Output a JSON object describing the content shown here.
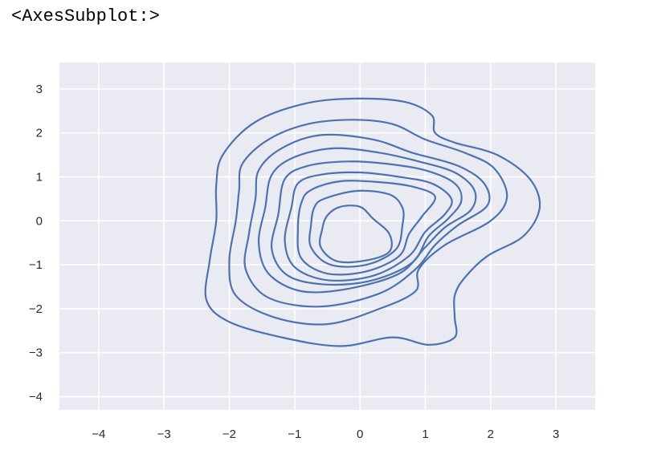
{
  "output_repr": "<AxesSubplot:>",
  "chart_data": {
    "type": "kde_contour",
    "title": "",
    "xlabel": "",
    "ylabel": "",
    "xlim": [
      -4.6,
      3.6
    ],
    "ylim": [
      -4.3,
      3.6
    ],
    "xticks": [
      -4,
      -3,
      -2,
      -1,
      0,
      1,
      2,
      3
    ],
    "yticks": [
      -4,
      -3,
      -2,
      -1,
      0,
      1,
      2,
      3
    ],
    "xtick_labels": [
      "−4",
      "−3",
      "−2",
      "−1",
      "0",
      "1",
      "2",
      "3"
    ],
    "ytick_labels": [
      "−4",
      "−3",
      "−2",
      "−1",
      "0",
      "1",
      "2",
      "3"
    ],
    "grid": true,
    "background_color": "#eaeaf2",
    "grid_color": "#ffffff",
    "line_color": "#4c72b0",
    "contours": [
      [
        [
          -2.1,
          1.5
        ],
        [
          -1.6,
          2.25
        ],
        [
          -0.8,
          2.68
        ],
        [
          0.0,
          2.78
        ],
        [
          0.7,
          2.7
        ],
        [
          1.1,
          2.4
        ],
        [
          1.15,
          2.0
        ],
        [
          1.45,
          1.78
        ],
        [
          2.1,
          1.5
        ],
        [
          2.6,
          0.95
        ],
        [
          2.75,
          0.3
        ],
        [
          2.5,
          -0.35
        ],
        [
          1.95,
          -0.8
        ],
        [
          1.6,
          -1.3
        ],
        [
          1.45,
          -1.7
        ],
        [
          1.45,
          -2.2
        ],
        [
          1.45,
          -2.65
        ],
        [
          1.05,
          -2.82
        ],
        [
          0.5,
          -2.65
        ],
        [
          -0.3,
          -2.85
        ],
        [
          -1.2,
          -2.65
        ],
        [
          -2.0,
          -2.3
        ],
        [
          -2.35,
          -1.8
        ],
        [
          -2.3,
          -0.9
        ],
        [
          -2.2,
          0.0
        ],
        [
          -2.2,
          0.8
        ]
      ],
      [
        [
          -1.8,
          1.3
        ],
        [
          -1.4,
          1.85
        ],
        [
          -0.8,
          2.2
        ],
        [
          -0.1,
          2.3
        ],
        [
          0.5,
          2.2
        ],
        [
          1.0,
          1.85
        ],
        [
          1.6,
          1.55
        ],
        [
          2.05,
          1.2
        ],
        [
          2.25,
          0.55
        ],
        [
          2.0,
          0.0
        ],
        [
          1.3,
          -0.55
        ],
        [
          0.9,
          -1.1
        ],
        [
          0.85,
          -1.6
        ],
        [
          0.3,
          -2.0
        ],
        [
          -0.5,
          -2.35
        ],
        [
          -1.3,
          -2.2
        ],
        [
          -1.9,
          -1.7
        ],
        [
          -2.0,
          -0.9
        ],
        [
          -1.9,
          0.0
        ],
        [
          -1.85,
          0.7
        ]
      ],
      [
        [
          -1.55,
          1.15
        ],
        [
          -1.2,
          1.65
        ],
        [
          -0.6,
          1.95
        ],
        [
          0.2,
          1.85
        ],
        [
          0.8,
          1.55
        ],
        [
          1.5,
          1.25
        ],
        [
          1.9,
          0.85
        ],
        [
          1.95,
          0.35
        ],
        [
          1.5,
          -0.1
        ],
        [
          1.15,
          -0.55
        ],
        [
          0.85,
          -1.1
        ],
        [
          0.3,
          -1.65
        ],
        [
          -0.6,
          -1.95
        ],
        [
          -1.4,
          -1.75
        ],
        [
          -1.75,
          -1.1
        ],
        [
          -1.7,
          -0.3
        ],
        [
          -1.6,
          0.5
        ]
      ],
      [
        [
          -1.35,
          1.05
        ],
        [
          -1.0,
          1.45
        ],
        [
          -0.4,
          1.65
        ],
        [
          0.3,
          1.55
        ],
        [
          0.9,
          1.35
        ],
        [
          1.45,
          1.1
        ],
        [
          1.75,
          0.7
        ],
        [
          1.7,
          0.25
        ],
        [
          1.3,
          -0.15
        ],
        [
          1.0,
          -0.6
        ],
        [
          0.6,
          -1.2
        ],
        [
          -0.2,
          -1.55
        ],
        [
          -0.9,
          -1.6
        ],
        [
          -1.4,
          -1.2
        ],
        [
          -1.55,
          -0.5
        ],
        [
          -1.45,
          0.3
        ]
      ],
      [
        [
          -1.15,
          0.95
        ],
        [
          -0.8,
          1.25
        ],
        [
          -0.2,
          1.35
        ],
        [
          0.4,
          1.3
        ],
        [
          1.0,
          1.15
        ],
        [
          1.45,
          0.85
        ],
        [
          1.55,
          0.45
        ],
        [
          1.35,
          0.05
        ],
        [
          1.05,
          -0.35
        ],
        [
          0.8,
          -0.95
        ],
        [
          0.2,
          -1.35
        ],
        [
          -0.5,
          -1.45
        ],
        [
          -1.1,
          -1.25
        ],
        [
          -1.35,
          -0.65
        ],
        [
          -1.25,
          0.15
        ]
      ],
      [
        [
          -0.95,
          0.85
        ],
        [
          -0.6,
          1.05
        ],
        [
          0.0,
          1.1
        ],
        [
          0.6,
          1.0
        ],
        [
          1.1,
          0.85
        ],
        [
          1.4,
          0.5
        ],
        [
          1.3,
          0.15
        ],
        [
          1.0,
          -0.25
        ],
        [
          0.75,
          -0.8
        ],
        [
          0.2,
          -1.25
        ],
        [
          -0.5,
          -1.35
        ],
        [
          -1.0,
          -1.05
        ],
        [
          -1.15,
          -0.45
        ],
        [
          -1.05,
          0.3
        ]
      ],
      [
        [
          -0.75,
          0.7
        ],
        [
          -0.3,
          0.9
        ],
        [
          0.3,
          0.88
        ],
        [
          0.8,
          0.78
        ],
        [
          1.15,
          0.55
        ],
        [
          0.95,
          0.1
        ],
        [
          0.75,
          -0.3
        ],
        [
          0.6,
          -0.8
        ],
        [
          0.1,
          -1.15
        ],
        [
          -0.5,
          -1.2
        ],
        [
          -0.9,
          -0.85
        ],
        [
          -0.95,
          -0.2
        ],
        [
          -0.9,
          0.4
        ]
      ],
      [
        [
          -0.55,
          0.5
        ],
        [
          -0.05,
          0.68
        ],
        [
          0.45,
          0.6
        ],
        [
          0.65,
          0.3
        ],
        [
          0.65,
          -0.1
        ],
        [
          0.55,
          -0.65
        ],
        [
          0.1,
          -1.0
        ],
        [
          -0.45,
          -1.0
        ],
        [
          -0.75,
          -0.6
        ],
        [
          -0.75,
          -0.1
        ],
        [
          -0.7,
          0.3
        ]
      ],
      [
        [
          -0.5,
          0.12
        ],
        [
          -0.3,
          0.32
        ],
        [
          0.0,
          0.32
        ],
        [
          0.2,
          0.05
        ],
        [
          0.45,
          -0.3
        ],
        [
          0.45,
          -0.7
        ],
        [
          0.1,
          -0.9
        ],
        [
          -0.35,
          -0.92
        ],
        [
          -0.6,
          -0.6
        ],
        [
          -0.58,
          -0.2
        ]
      ]
    ]
  }
}
